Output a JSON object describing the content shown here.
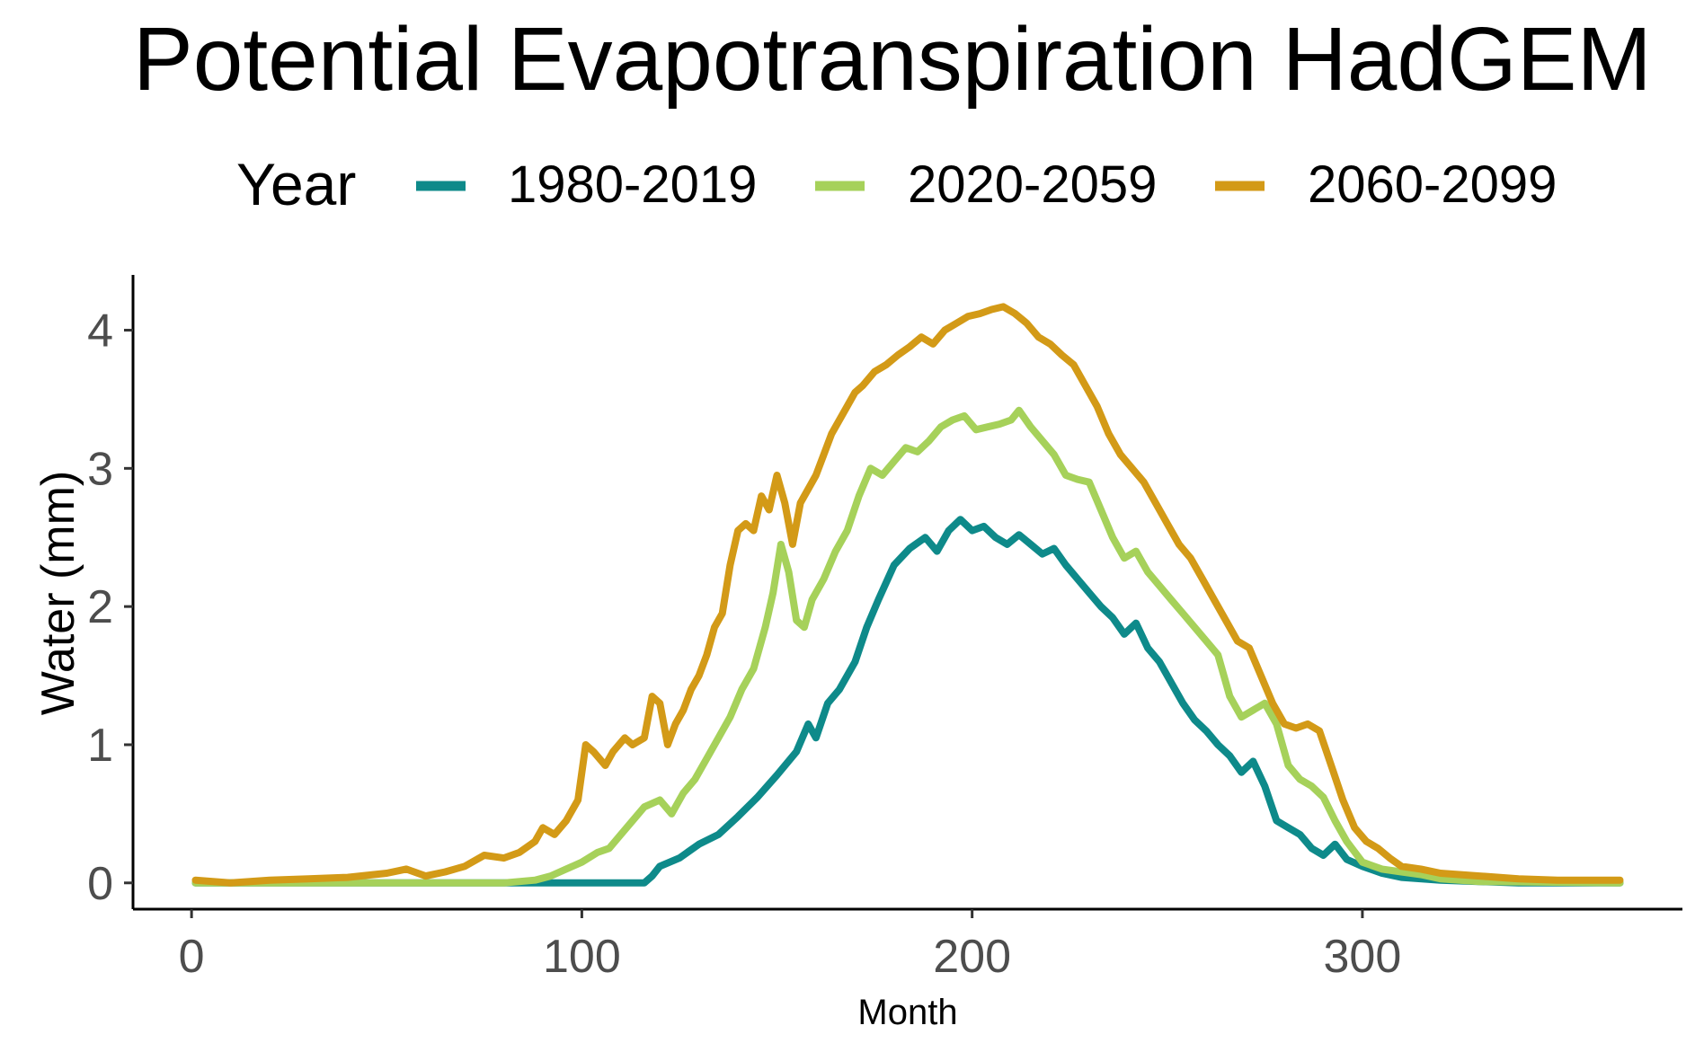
{
  "chart_data": {
    "type": "line",
    "title": "Potential Evapotranspiration HadGEM",
    "xlabel": "Month",
    "ylabel": "Water (mm)",
    "xlim": [
      -15,
      382
    ],
    "ylim": [
      -0.19,
      4.4
    ],
    "x_ticks": [
      0,
      100,
      200,
      300
    ],
    "y_ticks": [
      0,
      1,
      2,
      3,
      4
    ],
    "x_tick_labels": [
      "0",
      "100",
      "200",
      "300"
    ],
    "y_tick_labels": [
      "0",
      "1",
      "2",
      "3",
      "4"
    ],
    "grid": false,
    "legend": {
      "title": "Year",
      "position": "top"
    },
    "series": [
      {
        "name": "1980-2019",
        "color": "#0E8A8A",
        "points": [
          [
            1,
            0
          ],
          [
            60,
            0
          ],
          [
            116,
            0
          ],
          [
            118,
            0.05
          ],
          [
            120,
            0.12
          ],
          [
            125,
            0.18
          ],
          [
            130,
            0.28
          ],
          [
            135,
            0.35
          ],
          [
            140,
            0.48
          ],
          [
            145,
            0.62
          ],
          [
            150,
            0.78
          ],
          [
            155,
            0.95
          ],
          [
            158,
            1.15
          ],
          [
            160,
            1.05
          ],
          [
            163,
            1.3
          ],
          [
            166,
            1.4
          ],
          [
            170,
            1.6
          ],
          [
            173,
            1.85
          ],
          [
            176,
            2.05
          ],
          [
            180,
            2.3
          ],
          [
            184,
            2.42
          ],
          [
            188,
            2.5
          ],
          [
            191,
            2.4
          ],
          [
            194,
            2.55
          ],
          [
            197,
            2.63
          ],
          [
            200,
            2.55
          ],
          [
            203,
            2.58
          ],
          [
            206,
            2.5
          ],
          [
            209,
            2.45
          ],
          [
            212,
            2.52
          ],
          [
            215,
            2.45
          ],
          [
            218,
            2.38
          ],
          [
            221,
            2.42
          ],
          [
            224,
            2.3
          ],
          [
            227,
            2.2
          ],
          [
            230,
            2.1
          ],
          [
            233,
            2.0
          ],
          [
            236,
            1.92
          ],
          [
            239,
            1.8
          ],
          [
            242,
            1.88
          ],
          [
            245,
            1.7
          ],
          [
            248,
            1.6
          ],
          [
            251,
            1.45
          ],
          [
            254,
            1.3
          ],
          [
            257,
            1.18
          ],
          [
            260,
            1.1
          ],
          [
            263,
            1.0
          ],
          [
            266,
            0.92
          ],
          [
            269,
            0.8
          ],
          [
            272,
            0.88
          ],
          [
            275,
            0.7
          ],
          [
            278,
            0.45
          ],
          [
            281,
            0.4
          ],
          [
            284,
            0.35
          ],
          [
            287,
            0.25
          ],
          [
            290,
            0.2
          ],
          [
            293,
            0.28
          ],
          [
            296,
            0.17
          ],
          [
            300,
            0.12
          ],
          [
            305,
            0.07
          ],
          [
            310,
            0.04
          ],
          [
            320,
            0.02
          ],
          [
            340,
            0
          ],
          [
            366,
            0
          ]
        ]
      },
      {
        "name": "2020-2059",
        "color": "#A6D15A",
        "points": [
          [
            1,
            0
          ],
          [
            40,
            0
          ],
          [
            80,
            0
          ],
          [
            88,
            0.02
          ],
          [
            92,
            0.05
          ],
          [
            96,
            0.1
          ],
          [
            100,
            0.15
          ],
          [
            104,
            0.22
          ],
          [
            107,
            0.25
          ],
          [
            110,
            0.35
          ],
          [
            113,
            0.45
          ],
          [
            116,
            0.55
          ],
          [
            120,
            0.6
          ],
          [
            123,
            0.5
          ],
          [
            126,
            0.65
          ],
          [
            129,
            0.75
          ],
          [
            132,
            0.9
          ],
          [
            135,
            1.05
          ],
          [
            138,
            1.2
          ],
          [
            141,
            1.4
          ],
          [
            144,
            1.55
          ],
          [
            147,
            1.85
          ],
          [
            149,
            2.1
          ],
          [
            151,
            2.45
          ],
          [
            153,
            2.25
          ],
          [
            155,
            1.9
          ],
          [
            157,
            1.85
          ],
          [
            159,
            2.05
          ],
          [
            162,
            2.2
          ],
          [
            165,
            2.4
          ],
          [
            168,
            2.55
          ],
          [
            171,
            2.8
          ],
          [
            174,
            3.0
          ],
          [
            177,
            2.95
          ],
          [
            180,
            3.05
          ],
          [
            183,
            3.15
          ],
          [
            186,
            3.12
          ],
          [
            189,
            3.2
          ],
          [
            192,
            3.3
          ],
          [
            195,
            3.35
          ],
          [
            198,
            3.38
          ],
          [
            201,
            3.28
          ],
          [
            204,
            3.3
          ],
          [
            207,
            3.32
          ],
          [
            210,
            3.35
          ],
          [
            212,
            3.42
          ],
          [
            215,
            3.3
          ],
          [
            218,
            3.2
          ],
          [
            221,
            3.1
          ],
          [
            224,
            2.95
          ],
          [
            227,
            2.92
          ],
          [
            230,
            2.9
          ],
          [
            233,
            2.7
          ],
          [
            236,
            2.5
          ],
          [
            239,
            2.35
          ],
          [
            242,
            2.4
          ],
          [
            245,
            2.25
          ],
          [
            248,
            2.15
          ],
          [
            251,
            2.05
          ],
          [
            254,
            1.95
          ],
          [
            257,
            1.85
          ],
          [
            260,
            1.75
          ],
          [
            263,
            1.65
          ],
          [
            266,
            1.35
          ],
          [
            269,
            1.2
          ],
          [
            272,
            1.25
          ],
          [
            275,
            1.3
          ],
          [
            278,
            1.15
          ],
          [
            281,
            0.85
          ],
          [
            284,
            0.75
          ],
          [
            287,
            0.7
          ],
          [
            290,
            0.62
          ],
          [
            293,
            0.45
          ],
          [
            296,
            0.3
          ],
          [
            300,
            0.15
          ],
          [
            305,
            0.1
          ],
          [
            310,
            0.08
          ],
          [
            315,
            0.06
          ],
          [
            320,
            0.03
          ],
          [
            330,
            0.01
          ],
          [
            366,
            0
          ]
        ]
      },
      {
        "name": "2060-2099",
        "color": "#D39A17",
        "points": [
          [
            1,
            0.02
          ],
          [
            10,
            0
          ],
          [
            20,
            0.02
          ],
          [
            30,
            0.03
          ],
          [
            40,
            0.04
          ],
          [
            50,
            0.07
          ],
          [
            55,
            0.1
          ],
          [
            60,
            0.05
          ],
          [
            65,
            0.08
          ],
          [
            70,
            0.12
          ],
          [
            75,
            0.2
          ],
          [
            80,
            0.18
          ],
          [
            84,
            0.22
          ],
          [
            88,
            0.3
          ],
          [
            90,
            0.4
          ],
          [
            93,
            0.35
          ],
          [
            96,
            0.45
          ],
          [
            99,
            0.6
          ],
          [
            101,
            1.0
          ],
          [
            103,
            0.95
          ],
          [
            106,
            0.85
          ],
          [
            108,
            0.95
          ],
          [
            111,
            1.05
          ],
          [
            113,
            1.0
          ],
          [
            116,
            1.05
          ],
          [
            118,
            1.35
          ],
          [
            120,
            1.3
          ],
          [
            122,
            1.0
          ],
          [
            124,
            1.15
          ],
          [
            126,
            1.25
          ],
          [
            128,
            1.4
          ],
          [
            130,
            1.5
          ],
          [
            132,
            1.65
          ],
          [
            134,
            1.85
          ],
          [
            136,
            1.95
          ],
          [
            138,
            2.3
          ],
          [
            140,
            2.55
          ],
          [
            142,
            2.6
          ],
          [
            144,
            2.55
          ],
          [
            146,
            2.8
          ],
          [
            148,
            2.7
          ],
          [
            150,
            2.95
          ],
          [
            152,
            2.75
          ],
          [
            154,
            2.45
          ],
          [
            156,
            2.75
          ],
          [
            158,
            2.85
          ],
          [
            160,
            2.95
          ],
          [
            162,
            3.1
          ],
          [
            164,
            3.25
          ],
          [
            166,
            3.35
          ],
          [
            168,
            3.45
          ],
          [
            170,
            3.55
          ],
          [
            172,
            3.6
          ],
          [
            175,
            3.7
          ],
          [
            178,
            3.75
          ],
          [
            181,
            3.82
          ],
          [
            184,
            3.88
          ],
          [
            187,
            3.95
          ],
          [
            190,
            3.9
          ],
          [
            193,
            4.0
          ],
          [
            196,
            4.05
          ],
          [
            199,
            4.1
          ],
          [
            202,
            4.12
          ],
          [
            205,
            4.15
          ],
          [
            208,
            4.17
          ],
          [
            211,
            4.12
          ],
          [
            214,
            4.05
          ],
          [
            217,
            3.95
          ],
          [
            220,
            3.9
          ],
          [
            223,
            3.82
          ],
          [
            226,
            3.75
          ],
          [
            229,
            3.6
          ],
          [
            232,
            3.45
          ],
          [
            235,
            3.25
          ],
          [
            238,
            3.1
          ],
          [
            241,
            3.0
          ],
          [
            244,
            2.9
          ],
          [
            247,
            2.75
          ],
          [
            250,
            2.6
          ],
          [
            253,
            2.45
          ],
          [
            256,
            2.35
          ],
          [
            259,
            2.2
          ],
          [
            262,
            2.05
          ],
          [
            265,
            1.9
          ],
          [
            268,
            1.75
          ],
          [
            271,
            1.7
          ],
          [
            274,
            1.5
          ],
          [
            277,
            1.3
          ],
          [
            280,
            1.15
          ],
          [
            283,
            1.12
          ],
          [
            286,
            1.15
          ],
          [
            289,
            1.1
          ],
          [
            292,
            0.85
          ],
          [
            295,
            0.6
          ],
          [
            298,
            0.4
          ],
          [
            301,
            0.3
          ],
          [
            304,
            0.25
          ],
          [
            307,
            0.18
          ],
          [
            310,
            0.12
          ],
          [
            315,
            0.1
          ],
          [
            320,
            0.07
          ],
          [
            330,
            0.05
          ],
          [
            340,
            0.03
          ],
          [
            350,
            0.02
          ],
          [
            366,
            0.02
          ]
        ]
      }
    ]
  }
}
